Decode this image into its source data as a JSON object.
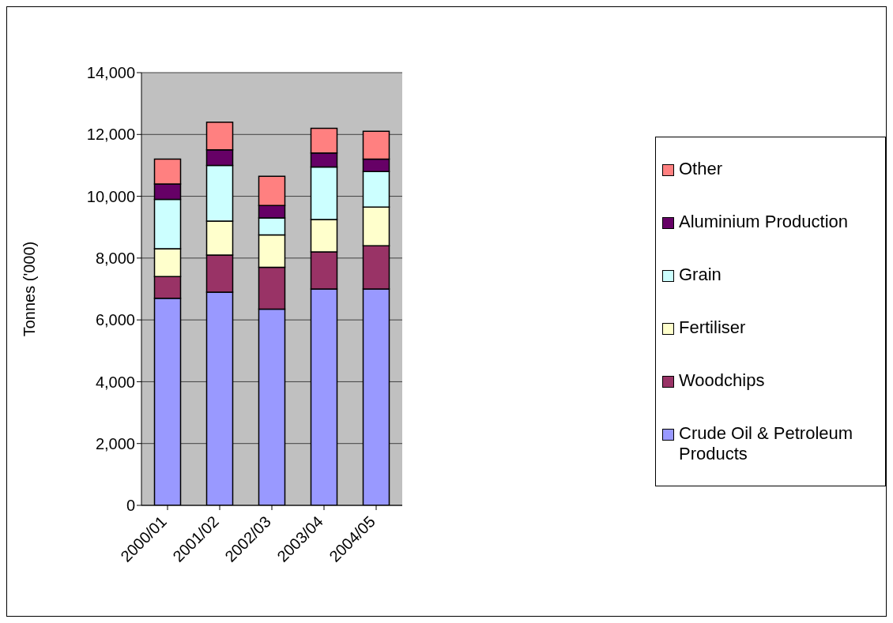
{
  "chart_data": {
    "type": "bar",
    "stacked": true,
    "ylabel": "Tonnes ('000)",
    "categories": [
      "2000/01",
      "2001/02",
      "2002/03",
      "2003/04",
      "2004/05"
    ],
    "series": [
      {
        "name": "Crude Oil & Petroleum Products",
        "color": "#9999ff",
        "values": [
          6700,
          6900,
          6350,
          7000,
          7000
        ]
      },
      {
        "name": "Woodchips",
        "color": "#993366",
        "values": [
          700,
          1200,
          1350,
          1200,
          1400
        ]
      },
      {
        "name": "Fertiliser",
        "color": "#ffffcc",
        "values": [
          900,
          1100,
          1050,
          1050,
          1250
        ]
      },
      {
        "name": "Grain",
        "color": "#ccffff",
        "values": [
          1600,
          1800,
          550,
          1700,
          1150
        ]
      },
      {
        "name": "Aluminium Production",
        "color": "#660066",
        "values": [
          500,
          500,
          400,
          450,
          400
        ]
      },
      {
        "name": "Other",
        "color": "#ff8080",
        "values": [
          800,
          900,
          950,
          800,
          900
        ]
      }
    ],
    "ylim": [
      0,
      14000
    ],
    "yticks": [
      {
        "value": 0,
        "label": "0"
      },
      {
        "value": 2000,
        "label": "2,000"
      },
      {
        "value": 4000,
        "label": "4,000"
      },
      {
        "value": 6000,
        "label": "6,000"
      },
      {
        "value": 8000,
        "label": "8,000"
      },
      {
        "value": 10000,
        "label": "10,000"
      },
      {
        "value": 12000,
        "label": "12,000"
      },
      {
        "value": 14000,
        "label": "14,000"
      }
    ],
    "grid": "y",
    "legend": "right"
  }
}
